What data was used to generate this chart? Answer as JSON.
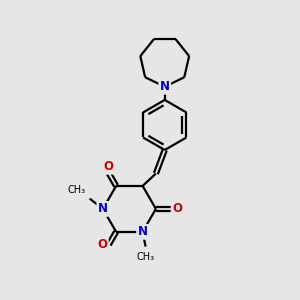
{
  "bg_color": "#e6e6e6",
  "bond_color": "#000000",
  "N_color": "#0000cc",
  "O_color": "#cc0000",
  "line_width": 1.6,
  "figsize": [
    3.0,
    3.0
  ],
  "dpi": 100,
  "xlim": [
    0,
    10
  ],
  "ylim": [
    0,
    10
  ]
}
